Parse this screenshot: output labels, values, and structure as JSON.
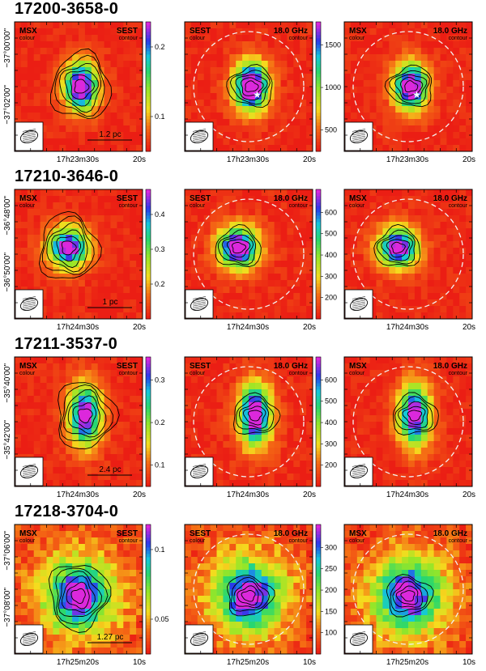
{
  "chart_data": [
    {
      "type": "heatmap",
      "source": "17200-3658-0",
      "dec_ticks": [
        "−37°00'00\"",
        "−37°02'00\""
      ],
      "ra_ticks": [
        "17h23m30s",
        "20s"
      ],
      "panels": [
        {
          "left": "MSX",
          "left_sub": "colour",
          "right": "SEST",
          "right_sub": "contour",
          "colorbar": [
            0.1,
            0.2
          ],
          "scale_bar": "1.2 pc"
        },
        {
          "left": "SEST",
          "left_sub": "colour",
          "right": "18.0 GHz",
          "right_sub": "contour",
          "colorbar": [
            500,
            1000,
            1500
          ]
        },
        {
          "left": "MSX",
          "left_sub": "colour",
          "right": "18.0 GHz",
          "right_sub": "contour"
        }
      ]
    },
    {
      "type": "heatmap",
      "source": "17210-3646-0",
      "dec_ticks": [
        "−36°48'00\"",
        "−36°50'00\""
      ],
      "ra_ticks": [
        "17h24m30s",
        "20s"
      ],
      "panels": [
        {
          "left": "MSX",
          "left_sub": "colour",
          "right": "SEST",
          "right_sub": "contour",
          "colorbar": [
            0.2,
            0.3,
            0.4
          ],
          "scale_bar": "1 pc"
        },
        {
          "left": "SEST",
          "left_sub": "colour",
          "right": "18.0 GHz",
          "right_sub": "contour",
          "colorbar": [
            200,
            300,
            400,
            500,
            600
          ]
        },
        {
          "left": "MSX",
          "left_sub": "colour",
          "right": "18.0 GHz",
          "right_sub": "contour"
        }
      ]
    },
    {
      "type": "heatmap",
      "source": "17211-3537-0",
      "dec_ticks": [
        "−35°40'00\"",
        "−35°42'00\""
      ],
      "ra_ticks": [
        "17h24m30s",
        "20s"
      ],
      "panels": [
        {
          "left": "MSX",
          "left_sub": "colour",
          "right": "SEST",
          "right_sub": "contour",
          "colorbar": [
            0.1,
            0.2,
            0.3
          ],
          "scale_bar": "2.4 pc"
        },
        {
          "left": "SEST",
          "left_sub": "colour",
          "right": "18.0 GHz",
          "right_sub": "contour",
          "colorbar": [
            200,
            300,
            400,
            500,
            600
          ]
        },
        {
          "left": "MSX",
          "left_sub": "colour",
          "right": "18.0 GHz",
          "right_sub": "contour"
        }
      ]
    },
    {
      "type": "heatmap",
      "source": "17218-3704-0",
      "dec_ticks": [
        "−37°06'00\"",
        "−37°08'00\""
      ],
      "ra_ticks": [
        "17h25m20s",
        "10s"
      ],
      "panels": [
        {
          "left": "MSX",
          "left_sub": "colour",
          "right": "SEST",
          "right_sub": "contour",
          "colorbar": [
            0.05,
            0.1
          ],
          "scale_bar": "1.27 pc"
        },
        {
          "left": "SEST",
          "left_sub": "colour",
          "right": "18.0 GHz",
          "right_sub": "contour",
          "colorbar": [
            100,
            150,
            200,
            250,
            300
          ]
        },
        {
          "left": "MSX",
          "left_sub": "colour",
          "right": "18.0 GHz",
          "right_sub": "contour"
        }
      ]
    }
  ]
}
